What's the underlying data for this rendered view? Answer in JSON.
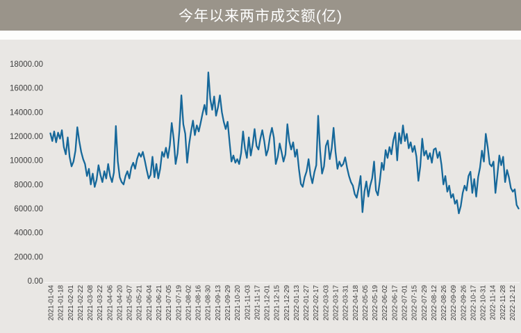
{
  "header": {
    "title": "今年以来两市成交额(亿)",
    "bg_color": "#9a948a",
    "text_color": "#ffffff"
  },
  "colors": {
    "page_bg": "#e9e7e4",
    "axis_line": "#f7f6f4",
    "tick_label": "#3d3d3d"
  },
  "chart_data": {
    "type": "line",
    "title": "今年以来两市成交额(亿)",
    "xlabel": "",
    "ylabel": "",
    "ylim": [
      0,
      18000
    ],
    "grid": false,
    "legend_position": "none",
    "y_tick_labels": [
      "0.00",
      "2000.00",
      "4000.00",
      "6000.00",
      "8000.00",
      "10000.00",
      "12000.00",
      "14000.00",
      "16000.00",
      "18000.00"
    ],
    "x_tick_labels": [
      "2021-01-04",
      "2021-01-18",
      "2021-02-01",
      "2021-02-22",
      "2021-03-08",
      "2021-03-22",
      "2021-04-06",
      "2021-04-20",
      "2021-05-07",
      "2021-05-21",
      "2021-06-04",
      "2021-06-21",
      "2021-07-05",
      "2021-07-19",
      "2021-08-02",
      "2021-08-16",
      "2021-08-30",
      "2021-09-13",
      "2021-09-29",
      "2021-10-20",
      "2021-11-03",
      "2021-11-17",
      "2021-12-01",
      "2021-12-15",
      "2021-12-29",
      "2022-01-13",
      "2022-01-27",
      "2022-02-17",
      "2022-03-03",
      "2022-03-17",
      "2022-03-31",
      "2022-04-18",
      "2022-05-05",
      "2022-05-19",
      "2022-06-02",
      "2022-06-17",
      "2022-07-01",
      "2022-07-15",
      "2022-07-29",
      "2022-08-12",
      "2022-08-26",
      "2022-09-09",
      "2022-09-26",
      "2022-10-17",
      "2022-10-31",
      "2022-11-14",
      "2022-11-28",
      "2022-12-12"
    ],
    "x_range_note": "daily turnover, Shanghai+Shenzhen markets, 2021-01-04 to mid-Dec 2022, values in 亿元 (approx, digitized every ~2 trading days)",
    "series": [
      {
        "name": "两市成交额",
        "color": "#16689a",
        "values": [
          12250,
          11600,
          12400,
          11500,
          12300,
          11800,
          12500,
          11100,
          10500,
          11900,
          10300,
          9500,
          9900,
          10800,
          12750,
          11600,
          10700,
          10100,
          9700,
          8700,
          9300,
          8000,
          8900,
          7800,
          8400,
          9600,
          8800,
          8200,
          9100,
          8500,
          9700,
          8700,
          8200,
          9000,
          12850,
          9900,
          8600,
          8200,
          8000,
          8700,
          9100,
          8500,
          9400,
          9800,
          9300,
          10100,
          10600,
          10300,
          10700,
          10000,
          9200,
          8500,
          8800,
          10300,
          8600,
          9700,
          8500,
          9300,
          10700,
          10300,
          11050,
          10200,
          11250,
          13100,
          11800,
          9700,
          10600,
          12500,
          15400,
          13000,
          12200,
          9800,
          11300,
          12400,
          13300,
          12100,
          12900,
          12400,
          13100,
          13900,
          14600,
          13800,
          17300,
          15100,
          14200,
          15300,
          13700,
          14400,
          15400,
          14000,
          13200,
          12600,
          13200,
          11500,
          9900,
          10400,
          9800,
          10100,
          9700,
          10600,
          12400,
          11000,
          10200,
          11900,
          10400,
          11300,
          12600,
          11200,
          10900,
          11800,
          12500,
          11600,
          10400,
          10900,
          12000,
          12700,
          11900,
          9700,
          10300,
          11400,
          10700,
          9900,
          10500,
          13000,
          11600,
          10900,
          11500,
          10300,
          10900,
          9300,
          8050,
          7800,
          8600,
          9100,
          10100,
          8800,
          8100,
          9000,
          9600,
          13700,
          10800,
          8900,
          9500,
          11200,
          11650,
          10100,
          11000,
          12700,
          10700,
          9300,
          9900,
          9500,
          9700,
          10250,
          9400,
          8700,
          8200,
          7900,
          7200,
          6900,
          7700,
          8700,
          5700,
          7400,
          8250,
          7000,
          7900,
          8500,
          9900,
          7500,
          7100,
          8300,
          9800,
          9200,
          10850,
          10200,
          11100,
          10500,
          11650,
          12300,
          10000,
          12250,
          11400,
          12900,
          11600,
          12200,
          11000,
          11500,
          10700,
          11200,
          10300,
          8300,
          9500,
          11800,
          10400,
          10800,
          10100,
          10600,
          9800,
          10900,
          11000,
          10200,
          10700,
          9600,
          8000,
          8700,
          7400,
          7900,
          6900,
          7200,
          6400,
          6700,
          5600,
          6200,
          7300,
          7900,
          7500,
          8700,
          9050,
          7300,
          8450,
          7000,
          8600,
          9400,
          10800,
          9900,
          12200,
          11100,
          9700,
          9500,
          9900,
          7300,
          8800,
          10400,
          9600,
          10300,
          8200,
          9200,
          8600,
          7700,
          7400,
          7600,
          6300,
          6000
        ]
      }
    ]
  }
}
